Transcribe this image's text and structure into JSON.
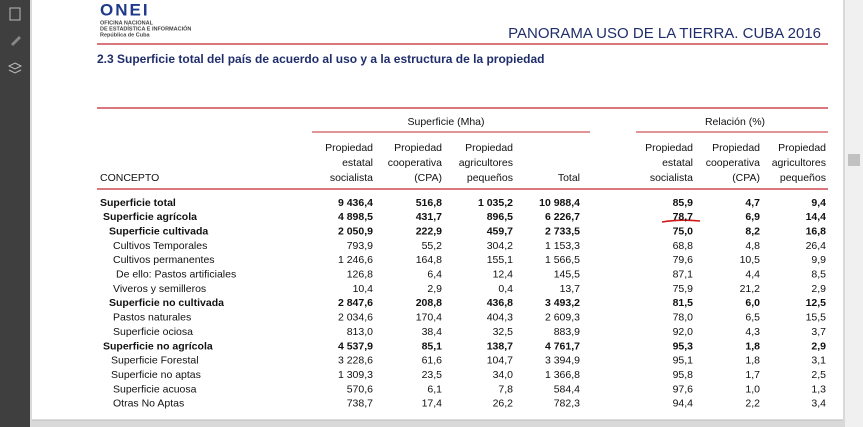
{
  "header": {
    "logo": "ONEI",
    "logo_lines": [
      "OFICINA NACIONAL",
      "DE ESTADÍSTICA E INFORMACIÓN",
      "República de Cuba"
    ],
    "title": "PANORAMA USO DE LA TIERRA. CUBA 2016",
    "subtitle": "2.3 Superficie total del país de acuerdo al uso y a la estructura de la propiedad"
  },
  "table": {
    "groups": [
      "Superficie (Mha)",
      "Relación (%)"
    ],
    "concept_header": "CONCEPTO",
    "columns": [
      [
        "Propiedad",
        "estatal",
        "socialista"
      ],
      [
        "Propiedad",
        "cooperativa",
        "(CPA)"
      ],
      [
        "Propiedad",
        "agricultores",
        "pequeños"
      ],
      [
        "Total"
      ],
      [
        "Propiedad",
        "estatal",
        "socialista"
      ],
      [
        "Propiedad",
        "cooperativa",
        "(CPA)"
      ],
      [
        "Propiedad",
        "agricultores",
        "pequeños"
      ]
    ],
    "rows": [
      [
        "Superficie total",
        "9 436,4",
        "516,8",
        "1 035,2",
        "10 988,4",
        "85,9",
        "4,7",
        "9,4"
      ],
      [
        "Superficie agrícola",
        "4 898,5",
        "431,7",
        "896,5",
        "6 226,7",
        "78,7",
        "6,9",
        "14,4"
      ],
      [
        "Superficie cultivada",
        "2 050,9",
        "222,9",
        "459,7",
        "2 733,5",
        "75,0",
        "8,2",
        "16,8"
      ],
      [
        "Cultivos Temporales",
        "793,9",
        "55,2",
        "304,2",
        "1 153,3",
        "68,8",
        "4,8",
        "26,4"
      ],
      [
        "Cultivos permanentes",
        "1 246,6",
        "164,8",
        "155,1",
        "1 566,5",
        "79,6",
        "10,5",
        "9,9"
      ],
      [
        "De ello: Pastos artificiales",
        "126,8",
        "6,4",
        "12,4",
        "145,5",
        "87,1",
        "4,4",
        "8,5"
      ],
      [
        "Viveros y semilleros",
        "10,4",
        "2,9",
        "0,4",
        "13,7",
        "75,9",
        "21,2",
        "2,9"
      ],
      [
        "Superficie no cultivada",
        "2 847,6",
        "208,8",
        "436,8",
        "3 493,2",
        "81,5",
        "6,0",
        "12,5"
      ],
      [
        "Pastos naturales",
        "2 034,6",
        "170,4",
        "404,3",
        "2 609,3",
        "78,0",
        "6,5",
        "15,5"
      ],
      [
        "Superficie ociosa",
        "813,0",
        "38,4",
        "32,5",
        "883,9",
        "92,0",
        "4,3",
        "3,7"
      ],
      [
        "Superficie no agrícola",
        "4 537,9",
        "85,1",
        "138,7",
        "4 761,7",
        "95,3",
        "1,8",
        "2,9"
      ],
      [
        "Superficie Forestal",
        "3 228,6",
        "61,6",
        "104,7",
        "3 394,9",
        "95,1",
        "1,8",
        "3,1"
      ],
      [
        "Superficie no aptas",
        "1 309,3",
        "23,5",
        "34,0",
        "1 366,8",
        "95,8",
        "1,7",
        "2,5"
      ],
      [
        "Superficie acuosa",
        "570,6",
        "6,1",
        "7,8",
        "584,4",
        "97,6",
        "1,0",
        "1,3"
      ],
      [
        "Otras No Aptas",
        "738,7",
        "17,4",
        "26,2",
        "782,3",
        "94,4",
        "2,2",
        "3,4"
      ]
    ]
  }
}
